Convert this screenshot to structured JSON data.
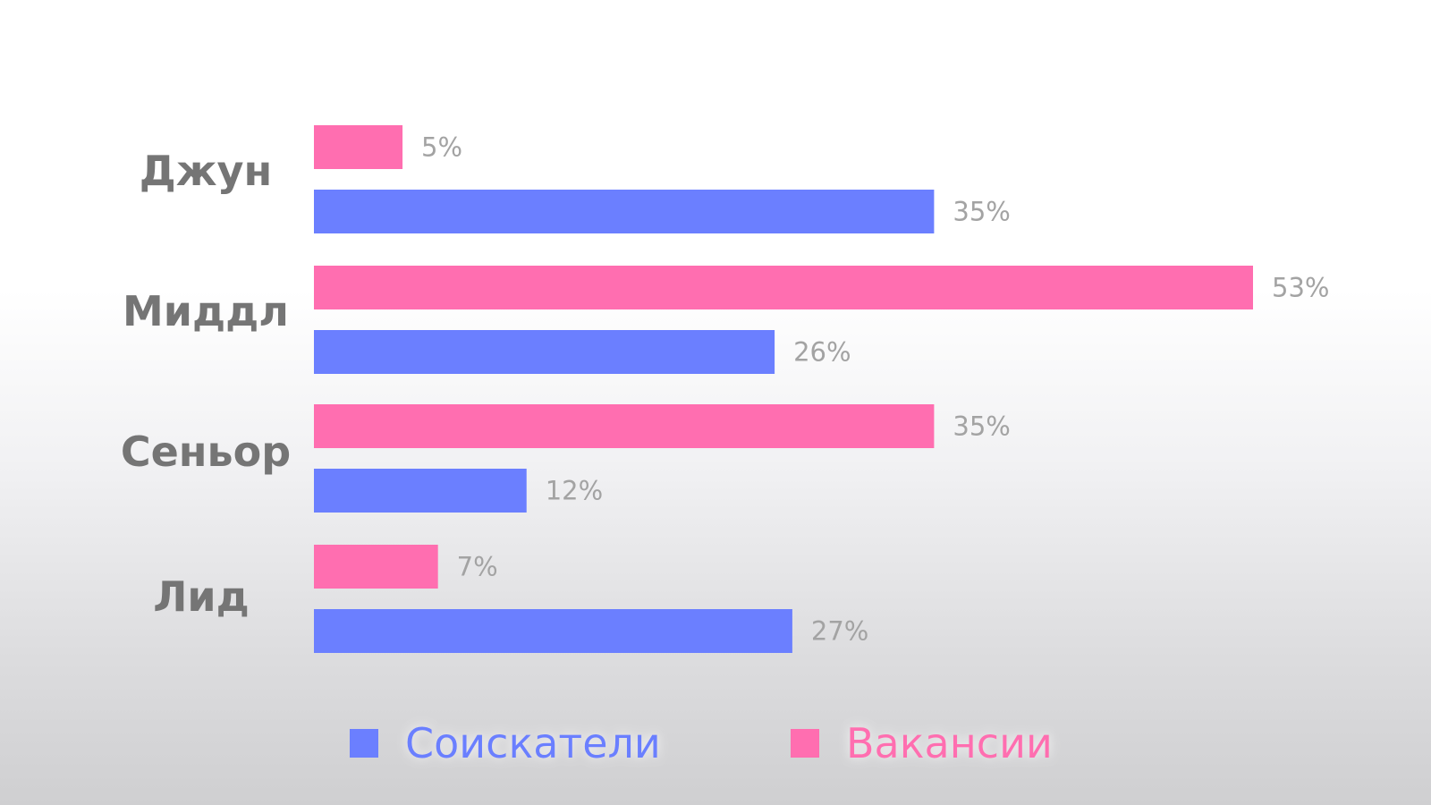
{
  "chart_data": {
    "type": "bar",
    "orientation": "horizontal",
    "categories": [
      "Джун",
      "Миддл",
      "Сеньор",
      "Лид"
    ],
    "series": [
      {
        "name": "Вакансии",
        "values": [
          5,
          53,
          35,
          7
        ],
        "color": "#ff6eb0"
      },
      {
        "name": "Соискатели",
        "values": [
          35,
          26,
          12,
          27
        ],
        "color": "#6b7fff"
      }
    ],
    "value_suffix": "%",
    "xlim": [
      0,
      53
    ],
    "legend": [
      {
        "name": "Соискатели",
        "color": "#6b7fff"
      },
      {
        "name": "Вакансии",
        "color": "#ff6eb0"
      }
    ],
    "legend_position": "bottom",
    "grid": false
  }
}
